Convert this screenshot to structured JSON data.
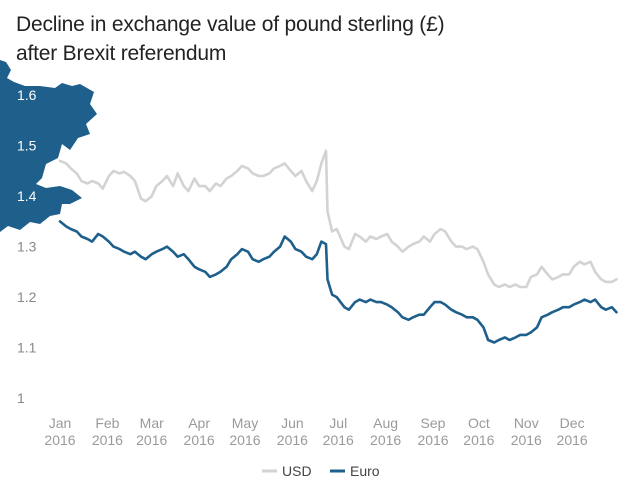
{
  "chart_data": {
    "type": "line",
    "title_lines": [
      "Decline in exchange value of pound sterling (£)",
      "after Brexit referendum"
    ],
    "yticks": [
      "1.6",
      "1.5",
      "1.4",
      "1.3",
      "1.2",
      "1.1",
      "1"
    ],
    "ylim": [
      1.0,
      1.65
    ],
    "xlim": [
      "2016-01-01",
      "2016-12-31"
    ],
    "xticks": [
      {
        "date": "2016-01-01",
        "month": "Jan",
        "year": "2016"
      },
      {
        "date": "2016-02-01",
        "month": "Feb",
        "year": "2016"
      },
      {
        "date": "2016-03-01",
        "month": "Mar",
        "year": "2016"
      },
      {
        "date": "2016-04-01",
        "month": "Apr",
        "year": "2016"
      },
      {
        "date": "2016-05-01",
        "month": "May",
        "year": "2016"
      },
      {
        "date": "2016-06-01",
        "month": "Jun",
        "year": "2016"
      },
      {
        "date": "2016-07-01",
        "month": "Jul",
        "year": "2016"
      },
      {
        "date": "2016-08-01",
        "month": "Aug",
        "year": "2016"
      },
      {
        "date": "2016-09-01",
        "month": "Sep",
        "year": "2016"
      },
      {
        "date": "2016-10-01",
        "month": "Oct",
        "year": "2016"
      },
      {
        "date": "2016-11-01",
        "month": "Nov",
        "year": "2016"
      },
      {
        "date": "2016-12-01",
        "month": "Dec",
        "year": "2016"
      }
    ],
    "legend_position": "bottom-center",
    "grid": false,
    "series": [
      {
        "name": "USD",
        "color": "#d3d3d3",
        "points": [
          [
            "2016-01-01",
            1.47
          ],
          [
            "2016-01-05",
            1.465
          ],
          [
            "2016-01-08",
            1.455
          ],
          [
            "2016-01-12",
            1.445
          ],
          [
            "2016-01-15",
            1.43
          ],
          [
            "2016-01-19",
            1.425
          ],
          [
            "2016-01-22",
            1.43
          ],
          [
            "2016-01-26",
            1.425
          ],
          [
            "2016-01-29",
            1.415
          ],
          [
            "2016-02-02",
            1.44
          ],
          [
            "2016-02-05",
            1.45
          ],
          [
            "2016-02-09",
            1.445
          ],
          [
            "2016-02-12",
            1.448
          ],
          [
            "2016-02-16",
            1.44
          ],
          [
            "2016-02-19",
            1.43
          ],
          [
            "2016-02-23",
            1.395
          ],
          [
            "2016-02-26",
            1.39
          ],
          [
            "2016-03-01",
            1.4
          ],
          [
            "2016-03-04",
            1.42
          ],
          [
            "2016-03-08",
            1.43
          ],
          [
            "2016-03-11",
            1.44
          ],
          [
            "2016-03-15",
            1.42
          ],
          [
            "2016-03-18",
            1.445
          ],
          [
            "2016-03-22",
            1.42
          ],
          [
            "2016-03-25",
            1.41
          ],
          [
            "2016-03-29",
            1.435
          ],
          [
            "2016-04-01",
            1.42
          ],
          [
            "2016-04-05",
            1.42
          ],
          [
            "2016-04-08",
            1.41
          ],
          [
            "2016-04-12",
            1.425
          ],
          [
            "2016-04-15",
            1.42
          ],
          [
            "2016-04-19",
            1.435
          ],
          [
            "2016-04-22",
            1.44
          ],
          [
            "2016-04-26",
            1.45
          ],
          [
            "2016-04-29",
            1.46
          ],
          [
            "2016-05-03",
            1.455
          ],
          [
            "2016-05-06",
            1.445
          ],
          [
            "2016-05-10",
            1.44
          ],
          [
            "2016-05-13",
            1.44
          ],
          [
            "2016-05-17",
            1.445
          ],
          [
            "2016-05-20",
            1.455
          ],
          [
            "2016-05-24",
            1.46
          ],
          [
            "2016-05-27",
            1.465
          ],
          [
            "2016-05-31",
            1.45
          ],
          [
            "2016-06-03",
            1.44
          ],
          [
            "2016-06-07",
            1.45
          ],
          [
            "2016-06-10",
            1.43
          ],
          [
            "2016-06-14",
            1.41
          ],
          [
            "2016-06-17",
            1.43
          ],
          [
            "2016-06-20",
            1.465
          ],
          [
            "2016-06-23",
            1.49
          ],
          [
            "2016-06-24",
            1.37
          ],
          [
            "2016-06-27",
            1.33
          ],
          [
            "2016-06-30",
            1.335
          ],
          [
            "2016-07-05",
            1.3
          ],
          [
            "2016-07-08",
            1.295
          ],
          [
            "2016-07-12",
            1.325
          ],
          [
            "2016-07-15",
            1.32
          ],
          [
            "2016-07-19",
            1.31
          ],
          [
            "2016-07-22",
            1.32
          ],
          [
            "2016-07-26",
            1.315
          ],
          [
            "2016-07-29",
            1.32
          ],
          [
            "2016-08-02",
            1.325
          ],
          [
            "2016-08-05",
            1.31
          ],
          [
            "2016-08-09",
            1.3
          ],
          [
            "2016-08-12",
            1.29
          ],
          [
            "2016-08-16",
            1.3
          ],
          [
            "2016-08-19",
            1.305
          ],
          [
            "2016-08-23",
            1.31
          ],
          [
            "2016-08-26",
            1.32
          ],
          [
            "2016-08-30",
            1.31
          ],
          [
            "2016-09-02",
            1.325
          ],
          [
            "2016-09-06",
            1.335
          ],
          [
            "2016-09-09",
            1.33
          ],
          [
            "2016-09-13",
            1.31
          ],
          [
            "2016-09-16",
            1.3
          ],
          [
            "2016-09-20",
            1.3
          ],
          [
            "2016-09-23",
            1.295
          ],
          [
            "2016-09-27",
            1.3
          ],
          [
            "2016-09-30",
            1.295
          ],
          [
            "2016-10-04",
            1.27
          ],
          [
            "2016-10-07",
            1.245
          ],
          [
            "2016-10-11",
            1.225
          ],
          [
            "2016-10-14",
            1.22
          ],
          [
            "2016-10-18",
            1.225
          ],
          [
            "2016-10-21",
            1.22
          ],
          [
            "2016-10-25",
            1.225
          ],
          [
            "2016-10-28",
            1.22
          ],
          [
            "2016-11-01",
            1.22
          ],
          [
            "2016-11-04",
            1.24
          ],
          [
            "2016-11-08",
            1.245
          ],
          [
            "2016-11-11",
            1.26
          ],
          [
            "2016-11-15",
            1.245
          ],
          [
            "2016-11-18",
            1.235
          ],
          [
            "2016-11-22",
            1.24
          ],
          [
            "2016-11-25",
            1.245
          ],
          [
            "2016-11-29",
            1.245
          ],
          [
            "2016-12-02",
            1.26
          ],
          [
            "2016-12-06",
            1.27
          ],
          [
            "2016-12-09",
            1.265
          ],
          [
            "2016-12-13",
            1.27
          ],
          [
            "2016-12-16",
            1.25
          ],
          [
            "2016-12-20",
            1.235
          ],
          [
            "2016-12-23",
            1.23
          ],
          [
            "2016-12-27",
            1.23
          ],
          [
            "2016-12-30",
            1.235
          ]
        ]
      },
      {
        "name": "Euro",
        "color": "#1f5f8b",
        "points": [
          [
            "2016-01-01",
            1.35
          ],
          [
            "2016-01-05",
            1.34
          ],
          [
            "2016-01-08",
            1.335
          ],
          [
            "2016-01-12",
            1.33
          ],
          [
            "2016-01-15",
            1.32
          ],
          [
            "2016-01-19",
            1.315
          ],
          [
            "2016-01-22",
            1.31
          ],
          [
            "2016-01-26",
            1.325
          ],
          [
            "2016-01-29",
            1.32
          ],
          [
            "2016-02-02",
            1.31
          ],
          [
            "2016-02-05",
            1.3
          ],
          [
            "2016-02-09",
            1.295
          ],
          [
            "2016-02-12",
            1.29
          ],
          [
            "2016-02-16",
            1.285
          ],
          [
            "2016-02-19",
            1.29
          ],
          [
            "2016-02-23",
            1.28
          ],
          [
            "2016-02-26",
            1.275
          ],
          [
            "2016-03-01",
            1.285
          ],
          [
            "2016-03-04",
            1.29
          ],
          [
            "2016-03-08",
            1.295
          ],
          [
            "2016-03-11",
            1.3
          ],
          [
            "2016-03-15",
            1.29
          ],
          [
            "2016-03-18",
            1.28
          ],
          [
            "2016-03-22",
            1.285
          ],
          [
            "2016-03-25",
            1.275
          ],
          [
            "2016-03-29",
            1.26
          ],
          [
            "2016-04-01",
            1.255
          ],
          [
            "2016-04-05",
            1.25
          ],
          [
            "2016-04-08",
            1.24
          ],
          [
            "2016-04-12",
            1.245
          ],
          [
            "2016-04-15",
            1.25
          ],
          [
            "2016-04-19",
            1.26
          ],
          [
            "2016-04-22",
            1.275
          ],
          [
            "2016-04-26",
            1.285
          ],
          [
            "2016-04-29",
            1.295
          ],
          [
            "2016-05-03",
            1.29
          ],
          [
            "2016-05-06",
            1.275
          ],
          [
            "2016-05-10",
            1.27
          ],
          [
            "2016-05-13",
            1.275
          ],
          [
            "2016-05-17",
            1.28
          ],
          [
            "2016-05-20",
            1.29
          ],
          [
            "2016-05-24",
            1.3
          ],
          [
            "2016-05-27",
            1.32
          ],
          [
            "2016-05-31",
            1.31
          ],
          [
            "2016-06-03",
            1.295
          ],
          [
            "2016-06-07",
            1.29
          ],
          [
            "2016-06-10",
            1.28
          ],
          [
            "2016-06-14",
            1.275
          ],
          [
            "2016-06-17",
            1.285
          ],
          [
            "2016-06-20",
            1.31
          ],
          [
            "2016-06-23",
            1.305
          ],
          [
            "2016-06-24",
            1.235
          ],
          [
            "2016-06-27",
            1.205
          ],
          [
            "2016-06-30",
            1.2
          ],
          [
            "2016-07-05",
            1.18
          ],
          [
            "2016-07-08",
            1.175
          ],
          [
            "2016-07-12",
            1.19
          ],
          [
            "2016-07-15",
            1.195
          ],
          [
            "2016-07-19",
            1.19
          ],
          [
            "2016-07-22",
            1.195
          ],
          [
            "2016-07-26",
            1.19
          ],
          [
            "2016-07-29",
            1.19
          ],
          [
            "2016-08-02",
            1.185
          ],
          [
            "2016-08-05",
            1.18
          ],
          [
            "2016-08-09",
            1.17
          ],
          [
            "2016-08-12",
            1.16
          ],
          [
            "2016-08-16",
            1.155
          ],
          [
            "2016-08-19",
            1.16
          ],
          [
            "2016-08-23",
            1.165
          ],
          [
            "2016-08-26",
            1.165
          ],
          [
            "2016-08-30",
            1.18
          ],
          [
            "2016-09-02",
            1.19
          ],
          [
            "2016-09-06",
            1.19
          ],
          [
            "2016-09-09",
            1.185
          ],
          [
            "2016-09-13",
            1.175
          ],
          [
            "2016-09-16",
            1.17
          ],
          [
            "2016-09-20",
            1.165
          ],
          [
            "2016-09-23",
            1.16
          ],
          [
            "2016-09-27",
            1.16
          ],
          [
            "2016-09-30",
            1.155
          ],
          [
            "2016-10-04",
            1.14
          ],
          [
            "2016-10-07",
            1.115
          ],
          [
            "2016-10-11",
            1.11
          ],
          [
            "2016-10-14",
            1.115
          ],
          [
            "2016-10-18",
            1.12
          ],
          [
            "2016-10-21",
            1.115
          ],
          [
            "2016-10-25",
            1.12
          ],
          [
            "2016-10-28",
            1.125
          ],
          [
            "2016-11-01",
            1.125
          ],
          [
            "2016-11-04",
            1.13
          ],
          [
            "2016-11-08",
            1.14
          ],
          [
            "2016-11-11",
            1.16
          ],
          [
            "2016-11-15",
            1.165
          ],
          [
            "2016-11-18",
            1.17
          ],
          [
            "2016-11-22",
            1.175
          ],
          [
            "2016-11-25",
            1.18
          ],
          [
            "2016-11-29",
            1.18
          ],
          [
            "2016-12-02",
            1.185
          ],
          [
            "2016-12-06",
            1.19
          ],
          [
            "2016-12-09",
            1.195
          ],
          [
            "2016-12-13",
            1.19
          ],
          [
            "2016-12-16",
            1.195
          ],
          [
            "2016-12-20",
            1.18
          ],
          [
            "2016-12-23",
            1.175
          ],
          [
            "2016-12-27",
            1.18
          ],
          [
            "2016-12-30",
            1.17
          ]
        ]
      }
    ]
  }
}
